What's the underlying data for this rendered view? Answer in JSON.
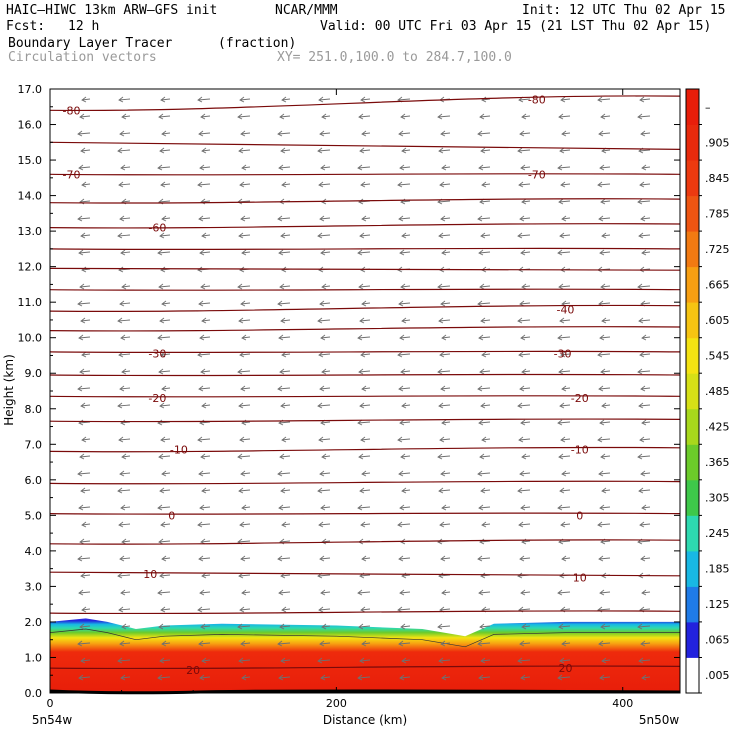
{
  "header": {
    "model": "HAIC–HIWC 13km ARW–GFS init",
    "org": "NCAR/MMM",
    "init": "Init: 12 UTC Thu 02 Apr 15",
    "fcst_label": "Fcst:",
    "fcst_value": "12 h",
    "valid": "Valid: 00 UTC Fri 03 Apr 15 (21 LST Thu 02 Apr 15)",
    "field": "Boundary Layer Tracer",
    "field_units": "(fraction)",
    "vectors": "Circulation vectors",
    "xy": "XY= 251.0,100.0 to 284.7,100.0"
  },
  "chart_data": {
    "type": "heatmap",
    "xlabel": "Distance (km)",
    "ylabel": "Height (km)",
    "xlim": [
      0,
      440
    ],
    "ylim": [
      0.0,
      17.0
    ],
    "x_ticks": [
      "0",
      "200",
      "400"
    ],
    "y_ticks": [
      "0.0",
      "1.0",
      "2.0",
      "3.0",
      "4.0",
      "5.0",
      "6.0",
      "7.0",
      "8.0",
      "9.0",
      "10.0",
      "11.0",
      "12.0",
      "13.0",
      "14.0",
      "15.0",
      "16.0",
      "17.0"
    ],
    "x_end_labels": {
      "left": "5n54w",
      "right": "5n50w"
    },
    "colorbar": {
      "labels": [
        ".005",
        ".065",
        ".125",
        ".185",
        ".245",
        ".305",
        ".365",
        ".425",
        ".485",
        ".545",
        ".605",
        ".665",
        ".725",
        ".785",
        ".845",
        ".905",
        "–"
      ],
      "colors": [
        "#ffffff",
        "#2222dd",
        "#1f7be8",
        "#18b8e4",
        "#2dd9b0",
        "#3ec84a",
        "#6ccb2a",
        "#a8d81c",
        "#d6e016",
        "#f4e312",
        "#f6c412",
        "#f79f12",
        "#f27a12",
        "#ee5512",
        "#ec3a10",
        "#e82a0c",
        "#e81e0a"
      ]
    },
    "tracer_top_km": [
      [
        0,
        2.0
      ],
      [
        25,
        2.1
      ],
      [
        40,
        2.0
      ],
      [
        60,
        1.8
      ],
      [
        80,
        1.9
      ],
      [
        120,
        1.95
      ],
      [
        200,
        1.9
      ],
      [
        260,
        1.8
      ],
      [
        290,
        1.6
      ],
      [
        310,
        1.95
      ],
      [
        360,
        2.0
      ],
      [
        440,
        2.0
      ]
    ],
    "isotherms": [
      {
        "label": "-80",
        "y0": 16.4,
        "y1": 16.8,
        "label_pos": [
          [
            15,
            16.4
          ],
          [
            340,
            16.7
          ]
        ]
      },
      {
        "label": "",
        "y0": 15.5,
        "y1": 15.3
      },
      {
        "label": "-70",
        "y0": 14.6,
        "y1": 14.6,
        "label_pos": [
          [
            15,
            14.6
          ],
          [
            340,
            14.6
          ]
        ]
      },
      {
        "label": "",
        "y0": 13.8,
        "y1": 13.9
      },
      {
        "label": "-60",
        "y0": 13.1,
        "y1": 13.2,
        "label_pos": [
          [
            75,
            13.1
          ]
        ]
      },
      {
        "label": "",
        "y0": 12.5,
        "y1": 12.5
      },
      {
        "label": "",
        "y0": 11.95,
        "y1": 11.9
      },
      {
        "label": "",
        "y0": 11.35,
        "y1": 11.35
      },
      {
        "label": "-40",
        "y0": 10.75,
        "y1": 10.9,
        "label_pos": [
          [
            360,
            10.8
          ]
        ]
      },
      {
        "label": "",
        "y0": 10.2,
        "y1": 10.3
      },
      {
        "label": "-30",
        "y0": 9.6,
        "y1": 9.6,
        "label_pos": [
          [
            75,
            9.55
          ],
          [
            358,
            9.55
          ]
        ]
      },
      {
        "label": "",
        "y0": 8.95,
        "y1": 8.95
      },
      {
        "label": "-20",
        "y0": 8.35,
        "y1": 8.35,
        "label_pos": [
          [
            75,
            8.3
          ],
          [
            370,
            8.3
          ]
        ]
      },
      {
        "label": "",
        "y0": 7.65,
        "y1": 7.7
      },
      {
        "label": "-10",
        "y0": 6.8,
        "y1": 6.9,
        "label_pos": [
          [
            90,
            6.85
          ],
          [
            370,
            6.85
          ]
        ]
      },
      {
        "label": "",
        "y0": 5.9,
        "y1": 5.95
      },
      {
        "label": "0",
        "y0": 5.05,
        "y1": 5.05,
        "label_pos": [
          [
            85,
            5.0
          ],
          [
            370,
            5.0
          ]
        ]
      },
      {
        "label": "",
        "y0": 4.2,
        "y1": 4.3
      },
      {
        "label": "10",
        "y0": 3.4,
        "y1": 3.3,
        "label_pos": [
          [
            70,
            3.35
          ],
          [
            370,
            3.25
          ]
        ]
      },
      {
        "label": "",
        "y0": 2.25,
        "y1": 2.3
      },
      {
        "label": "20",
        "y0": 0.7,
        "y1": 0.75,
        "label_pos": [
          [
            100,
            0.65
          ],
          [
            360,
            0.7
          ]
        ]
      }
    ]
  }
}
